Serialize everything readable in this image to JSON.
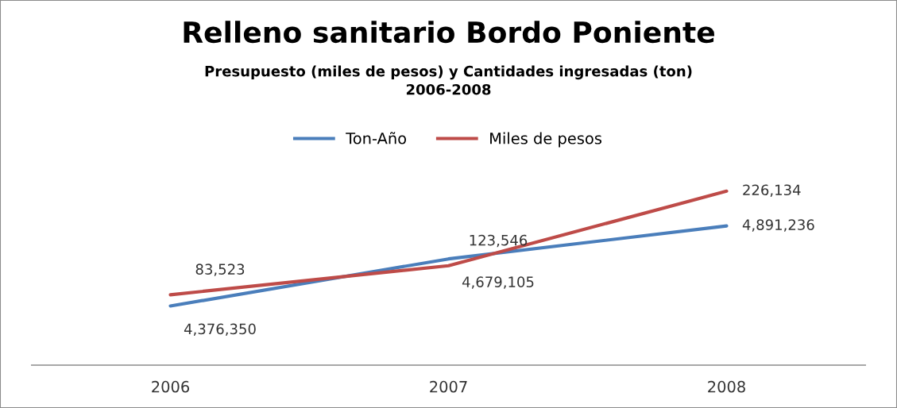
{
  "chart_data": {
    "type": "line",
    "title": "Relleno sanitario Bordo Poniente",
    "subtitle": "Presupuesto (miles de pesos) y Cantidades ingresadas (ton)\n2006-2008",
    "categories": [
      "2006",
      "2007",
      "2008"
    ],
    "series": [
      {
        "name": "Ton-Año",
        "color": "#4a7ebb",
        "values": [
          4376350,
          4679105,
          4891236
        ],
        "value_labels": [
          "4,376,350",
          "4,679,105",
          "4,891,236"
        ]
      },
      {
        "name": "Miles de pesos",
        "color": "#be4b48",
        "axis": "y2",
        "values": [
          83523,
          123546,
          226134
        ],
        "value_labels": [
          "83,523",
          "123,546",
          "226,134"
        ]
      }
    ],
    "tick_labels": "x",
    "grid": false,
    "legend": "top",
    "marker": "none",
    "line_style": "solid"
  }
}
